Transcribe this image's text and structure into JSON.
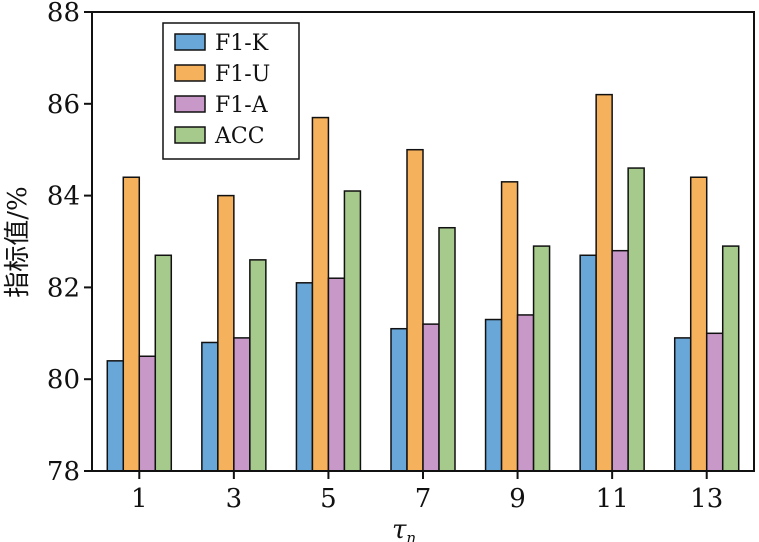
{
  "chart_data": {
    "type": "bar",
    "title": "",
    "xlabel": "τ",
    "xlabel_subscript": "n",
    "ylabel": "指标值/%",
    "ylim": [
      78,
      88
    ],
    "yticks": [
      "78",
      "80",
      "82",
      "84",
      "86",
      "88"
    ],
    "categories": [
      "1",
      "3",
      "5",
      "7",
      "9",
      "11",
      "13"
    ],
    "legend_position": "top-left",
    "series": [
      {
        "name": "F1-K",
        "color": "#6aa7d9",
        "values": [
          80.4,
          80.8,
          82.1,
          81.1,
          81.3,
          82.7,
          80.9
        ]
      },
      {
        "name": "F1-U",
        "color": "#f6b15c",
        "values": [
          84.4,
          84.0,
          85.7,
          85.0,
          84.3,
          86.2,
          84.4
        ]
      },
      {
        "name": "F1-A",
        "color": "#c898c8",
        "values": [
          80.5,
          80.9,
          82.2,
          81.2,
          81.4,
          82.8,
          81.0
        ]
      },
      {
        "name": "ACC",
        "color": "#a6c98c",
        "values": [
          82.7,
          82.6,
          84.1,
          83.3,
          82.9,
          84.6,
          82.9
        ]
      }
    ]
  }
}
